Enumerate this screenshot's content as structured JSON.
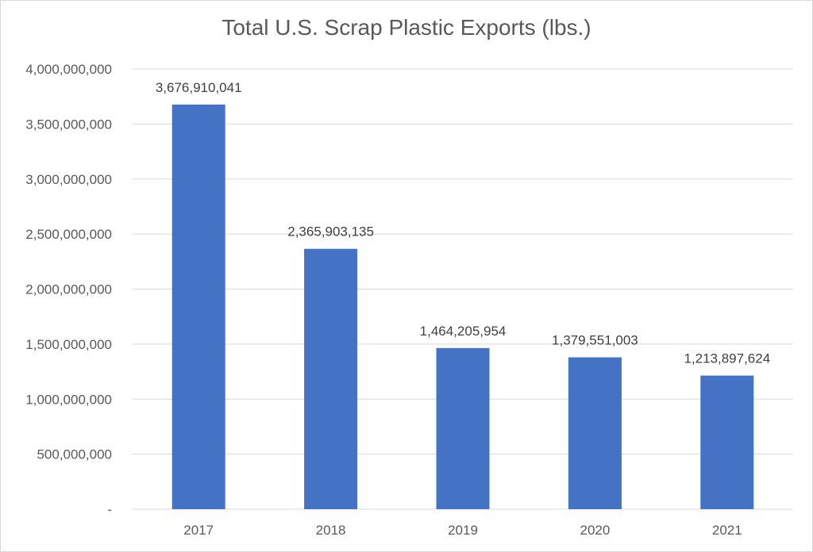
{
  "chart_data": {
    "type": "bar",
    "title": "Total U.S. Scrap Plastic Exports (lbs.)",
    "xlabel": "",
    "ylabel": "",
    "categories": [
      "2017",
      "2018",
      "2019",
      "2020",
      "2021"
    ],
    "values": [
      3676910041,
      2365903135,
      1464205954,
      1379551003,
      1213897624
    ],
    "data_labels": [
      "3,676,910,041",
      "2,365,903,135",
      "1,464,205,954",
      "1,379,551,003",
      "1,213,897,624"
    ],
    "ylim": [
      0,
      4000000000
    ],
    "y_ticks": [
      0,
      500000000,
      1000000000,
      1500000000,
      2000000000,
      2500000000,
      3000000000,
      3500000000,
      4000000000
    ],
    "y_tick_labels": [
      "-",
      "500,000,000",
      "1,000,000,000",
      "1,500,000,000",
      "2,000,000,000",
      "2,500,000,000",
      "3,000,000,000",
      "3,500,000,000",
      "4,000,000,000"
    ],
    "grid": true,
    "legend": "none",
    "bar_color": "#4472C4"
  }
}
